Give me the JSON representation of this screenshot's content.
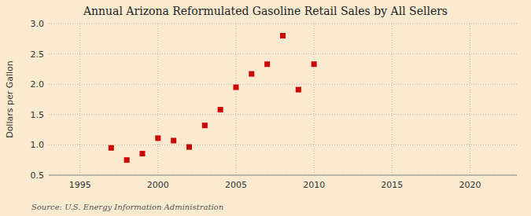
{
  "chart_data": {
    "type": "scatter",
    "title": "Annual Arizona Reformulated Gasoline Retail Sales by All Sellers",
    "ylabel": "Dollars per Gallon",
    "annotations": [
      "Source: U.S. Energy Information Administration"
    ],
    "x": [
      1997,
      1998,
      1999,
      2000,
      2001,
      2002,
      2003,
      2004,
      2005,
      2006,
      2007,
      2008,
      2009,
      2010
    ],
    "values": [
      0.95,
      0.75,
      0.855,
      1.11,
      1.07,
      0.965,
      1.32,
      1.58,
      1.95,
      2.17,
      2.33,
      2.8,
      1.91,
      2.33
    ],
    "color": "#cc0000",
    "marker": "square",
    "xlim": [
      1993,
      2023
    ],
    "ylim": [
      0.5,
      3.0
    ],
    "xticks": [
      1995,
      2000,
      2005,
      2010,
      2015,
      2020
    ],
    "yticks": [
      0.5,
      {
        "value": 1.0,
        "label": "1.0"
      },
      1.5,
      {
        "value": 2.0,
        "label": "2.0"
      },
      2.5,
      {
        "value": 3.0,
        "label": "3.0"
      }
    ],
    "grid": true
  }
}
